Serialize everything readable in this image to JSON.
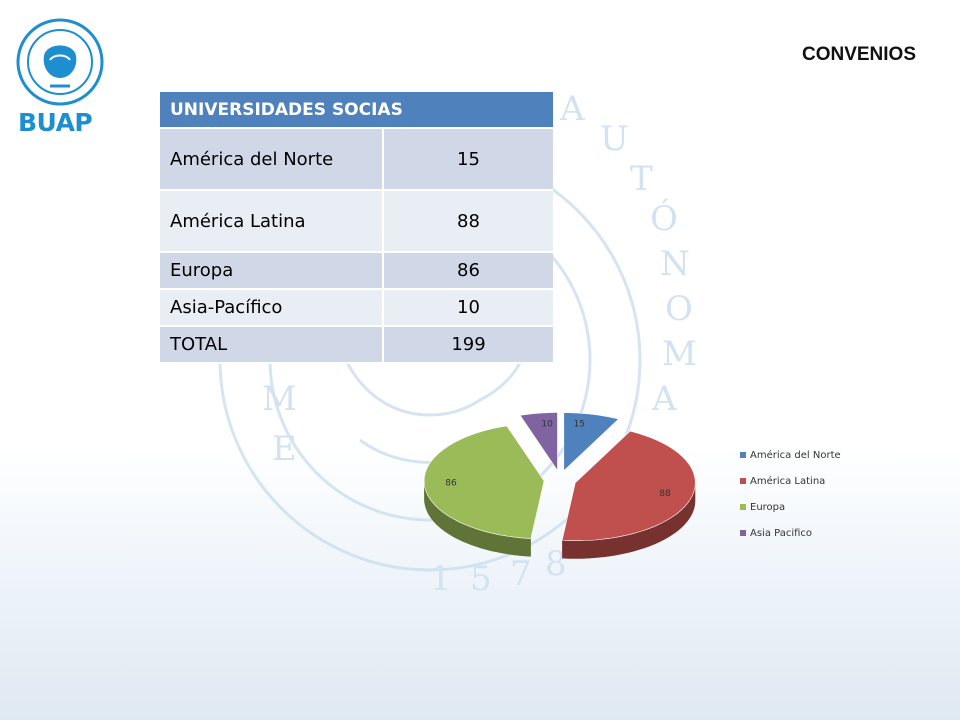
{
  "header": {
    "slide_title": "CONVENIOS",
    "logo_text": "BUAP"
  },
  "table": {
    "header": "UNIVERSIDADES SOCIAS",
    "rows": [
      {
        "label": "América del Norte",
        "value": "15"
      },
      {
        "label": "América Latina",
        "value": "88"
      },
      {
        "label": "Europa",
        "value": "86"
      },
      {
        "label": "Asia-Pacífico",
        "value": "10"
      },
      {
        "label": "TOTAL",
        "value": "199"
      }
    ]
  },
  "chart_data": {
    "type": "pie",
    "categories": [
      "América del Norte",
      "América Latina",
      "Europa",
      "Asia Pacifico"
    ],
    "values": [
      15,
      88,
      86,
      10
    ],
    "colors": [
      "#4f81bd",
      "#c0504d",
      "#9bbb59",
      "#8064a2"
    ],
    "data_labels": [
      "15",
      "88",
      "86",
      "10"
    ],
    "exploded": true,
    "style": "3d",
    "legend_position": "right"
  }
}
